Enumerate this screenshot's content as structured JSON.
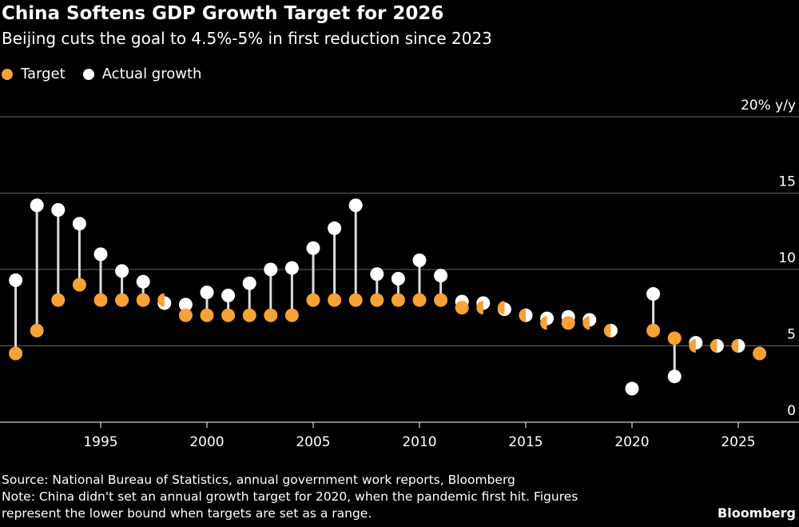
{
  "title": "China Softens GDP Growth Target for 2026",
  "subtitle": "Beijing cuts the goal to 4.5%-5% in first reduction since 2023",
  "legend": [
    {
      "label": "Target",
      "color": "#f7a234"
    },
    {
      "label": "Actual growth",
      "color": "#ffffff"
    }
  ],
  "footer": {
    "source": "Source: National Bureau of Statistics, annual government work reports, Bloomberg",
    "note1": "Note: China didn't set an annual growth target for 2020, when the pandemic first hit. Figures",
    "note2": "represent the lower bound when targets are set as a range.",
    "brand": "Bloomberg"
  },
  "chart_data": {
    "type": "scatter",
    "title": "China Softens GDP Growth Target for 2026",
    "ylabel": "20% y/y",
    "ylim": [
      0,
      20
    ],
    "yticks": [
      {
        "v": 0,
        "label": "0"
      },
      {
        "v": 5,
        "label": "5"
      },
      {
        "v": 10,
        "label": "10"
      },
      {
        "v": 15,
        "label": "15"
      },
      {
        "v": 20,
        "label": "20% y/y"
      }
    ],
    "xticks": [
      1995,
      2000,
      2005,
      2010,
      2015,
      2020,
      2025
    ],
    "grid": true,
    "legend_position": "top-left",
    "x": [
      1991,
      1992,
      1993,
      1994,
      1995,
      1996,
      1997,
      1998,
      1999,
      2000,
      2001,
      2002,
      2003,
      2004,
      2005,
      2006,
      2007,
      2008,
      2009,
      2010,
      2011,
      2012,
      2013,
      2014,
      2015,
      2016,
      2017,
      2018,
      2019,
      2020,
      2021,
      2022,
      2023,
      2024,
      2025,
      2026
    ],
    "series": [
      {
        "name": "Target",
        "color": "#f7a234",
        "values": [
          4.5,
          6,
          8,
          9,
          8,
          8,
          8,
          8,
          7,
          7,
          7,
          7,
          7,
          7,
          8,
          8,
          8,
          8,
          8,
          8,
          8,
          7.5,
          7.5,
          7.5,
          7,
          6.5,
          6.5,
          6.5,
          6,
          null,
          6,
          5.5,
          5,
          5,
          5,
          4.5
        ]
      },
      {
        "name": "Actual growth",
        "color": "#ffffff",
        "values": [
          9.3,
          14.2,
          13.9,
          13.0,
          11.0,
          9.9,
          9.2,
          7.8,
          7.7,
          8.5,
          8.3,
          9.1,
          10.0,
          10.1,
          11.4,
          12.7,
          14.2,
          9.7,
          9.4,
          10.6,
          9.6,
          7.9,
          7.8,
          7.4,
          7.0,
          6.8,
          6.9,
          6.7,
          6.0,
          2.2,
          8.4,
          3.0,
          5.2,
          5.0,
          5.0,
          null
        ]
      }
    ]
  }
}
